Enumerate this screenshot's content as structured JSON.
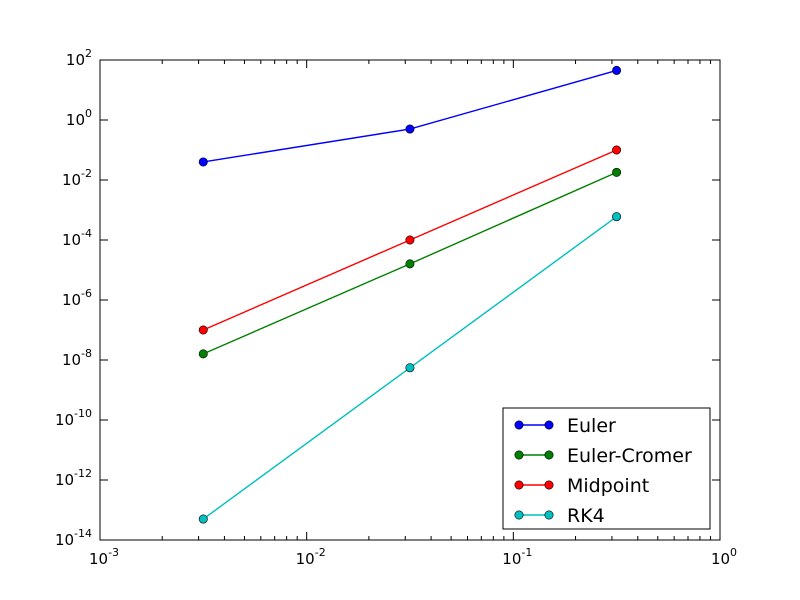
{
  "chart_data": {
    "type": "line",
    "title": "",
    "xlabel": "",
    "ylabel": "",
    "x_scale": "log",
    "y_scale": "log",
    "xlim": [
      0.001,
      1
    ],
    "ylim": [
      1e-14,
      100
    ],
    "grid": false,
    "legend_position": "lower-right",
    "x_ticks": [
      {
        "value": 0.001,
        "base": "10",
        "exp": "-3"
      },
      {
        "value": 0.01,
        "base": "10",
        "exp": "-2"
      },
      {
        "value": 0.1,
        "base": "10",
        "exp": "-1"
      },
      {
        "value": 1,
        "base": "10",
        "exp": "0"
      }
    ],
    "y_ticks": [
      {
        "value": 1e-14,
        "base": "10",
        "exp": "-14"
      },
      {
        "value": 1e-12,
        "base": "10",
        "exp": "-12"
      },
      {
        "value": 1e-10,
        "base": "10",
        "exp": "-10"
      },
      {
        "value": 1e-08,
        "base": "10",
        "exp": "-8"
      },
      {
        "value": 1e-06,
        "base": "10",
        "exp": "-6"
      },
      {
        "value": 0.0001,
        "base": "10",
        "exp": "-4"
      },
      {
        "value": 0.01,
        "base": "10",
        "exp": "-2"
      },
      {
        "value": 1,
        "base": "10",
        "exp": "0"
      },
      {
        "value": 100,
        "base": "10",
        "exp": "2"
      }
    ],
    "x": [
      0.00316,
      0.0316,
      0.316
    ],
    "series": [
      {
        "name": "Euler",
        "color": "#0000ff",
        "values": [
          0.04,
          0.5,
          45
        ]
      },
      {
        "name": "Euler-Cromer",
        "color": "#008000",
        "values": [
          1.6e-08,
          1.6e-05,
          0.018
        ]
      },
      {
        "name": "Midpoint",
        "color": "#ff0000",
        "values": [
          1e-07,
          0.0001,
          0.1
        ]
      },
      {
        "name": "RK4",
        "color": "#00bfbf",
        "values": [
          5e-14,
          5.5e-09,
          0.0006
        ]
      }
    ]
  }
}
